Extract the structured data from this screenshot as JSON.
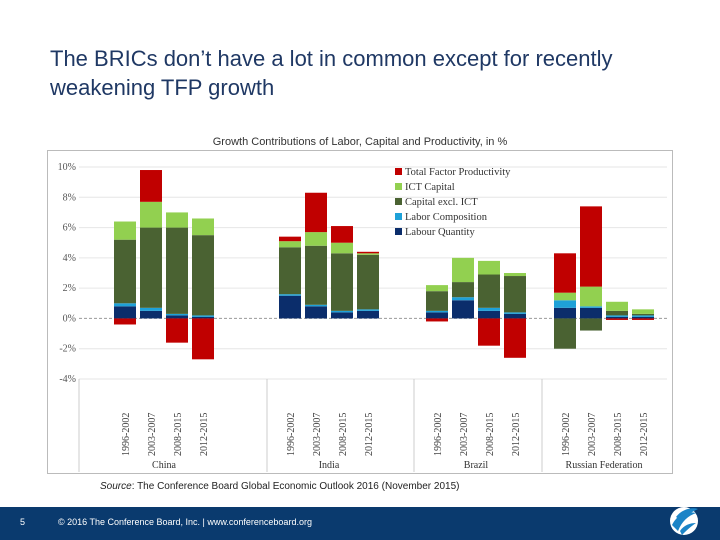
{
  "slide": {
    "title": "The BRICs don’t have a lot in common except for recently weakening TFP growth",
    "source_label": "Source",
    "source_text": ": The Conference Board Global Economic Outlook 2016 (November 2015)",
    "page_number": "5",
    "copyright": "© 2016 The Conference Board, Inc.  |  www.conferenceboard.org"
  },
  "chart_data": {
    "type": "bar",
    "stacked": true,
    "title": "Growth Contributions of Labor, Capital and Productivity, in %",
    "groups": [
      "China",
      "India",
      "Brazil",
      "Russian Federation"
    ],
    "periods": [
      "1996-2002",
      "2003-2007",
      "2008-2015",
      "2012-2015"
    ],
    "y_tick_labels": [
      "10%",
      "8%",
      "6%",
      "4%",
      "2%",
      "0%",
      "-2%",
      "-4%"
    ],
    "ylim": [
      -4,
      10
    ],
    "legend_position": "top-right",
    "series": [
      {
        "name": "Labour Quantity",
        "color": "#0b2d6b",
        "values": [
          0.8,
          0.5,
          0.2,
          0.1,
          1.5,
          0.8,
          0.4,
          0.5,
          0.4,
          1.2,
          0.5,
          0.3,
          0.7,
          0.7,
          0.1,
          0.1
        ]
      },
      {
        "name": "Labor Composition",
        "color": "#1ea1d8",
        "values": [
          0.2,
          0.2,
          0.1,
          0.1,
          0.1,
          0.1,
          0.1,
          0.1,
          0.1,
          0.2,
          0.2,
          0.1,
          0.5,
          0.1,
          0.1,
          0.1
        ]
      },
      {
        "name": "Capital excl. ICT",
        "color": "#4a6232",
        "values": [
          4.2,
          5.3,
          5.7,
          5.3,
          3.1,
          3.9,
          3.8,
          3.6,
          1.3,
          1.0,
          2.2,
          2.4,
          -2.0,
          -0.8,
          0.3,
          0.1
        ]
      },
      {
        "name": "ICT Capital",
        "color": "#92d050",
        "values": [
          1.2,
          1.7,
          1.0,
          1.1,
          0.4,
          0.9,
          0.7,
          0.1,
          0.4,
          1.6,
          0.9,
          0.2,
          0.5,
          1.3,
          0.6,
          0.3
        ]
      },
      {
        "name": "Total Factor Productivity",
        "color": "#c00000",
        "values": [
          -0.4,
          2.1,
          -1.6,
          -2.7,
          0.3,
          2.6,
          1.1,
          0.1,
          -0.2,
          0.0,
          -1.8,
          -2.6,
          2.6,
          5.3,
          -0.1,
          -0.1
        ]
      }
    ]
  }
}
